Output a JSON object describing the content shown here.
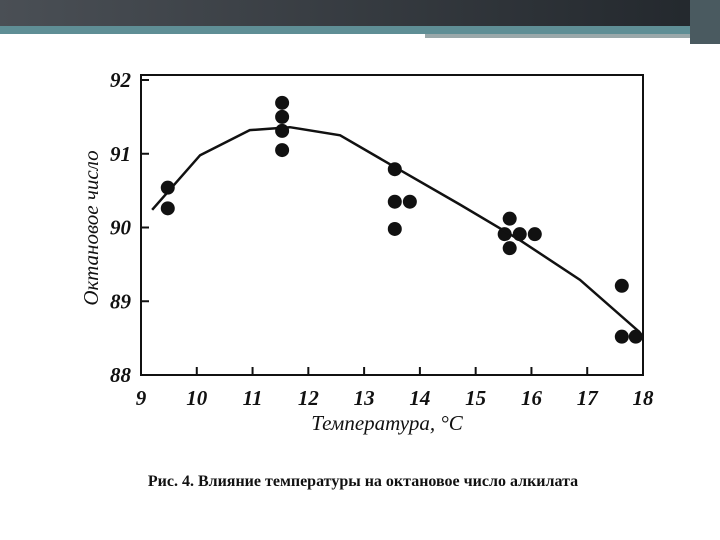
{
  "chart_data": {
    "type": "scatter",
    "xlabel": "Температура, °C",
    "ylabel": "Октановое число",
    "caption": "Рис. 4. Влияние температуры на октановое число алкилата",
    "xlim": [
      9,
      18
    ],
    "ylim": [
      88,
      92
    ],
    "xticks": [
      9,
      10,
      11,
      12,
      13,
      14,
      15,
      16,
      17,
      18
    ],
    "yticks": [
      88,
      89,
      90,
      91,
      92
    ],
    "series": [
      {
        "type": "scatter",
        "color": "#111111",
        "x": [
          9.48,
          9.48,
          11.53,
          11.53,
          11.53,
          11.53,
          13.55,
          13.55,
          13.82,
          13.55,
          15.61,
          15.52,
          15.79,
          16.06,
          15.61,
          17.62,
          17.62,
          17.87
        ],
        "values": [
          90.54,
          90.26,
          91.69,
          91.5,
          91.31,
          91.05,
          90.79,
          90.35,
          90.35,
          89.98,
          90.12,
          89.91,
          89.91,
          89.91,
          89.72,
          89.21,
          88.52,
          88.52
        ]
      },
      {
        "type": "line",
        "color": "#111111",
        "x": [
          9.2,
          10.06,
          10.95,
          11.67,
          12.57,
          13.64,
          14.72,
          15.79,
          16.87,
          17.94
        ],
        "values": [
          90.24,
          90.98,
          91.32,
          91.36,
          91.25,
          90.78,
          90.31,
          89.83,
          89.29,
          88.58
        ]
      }
    ]
  }
}
